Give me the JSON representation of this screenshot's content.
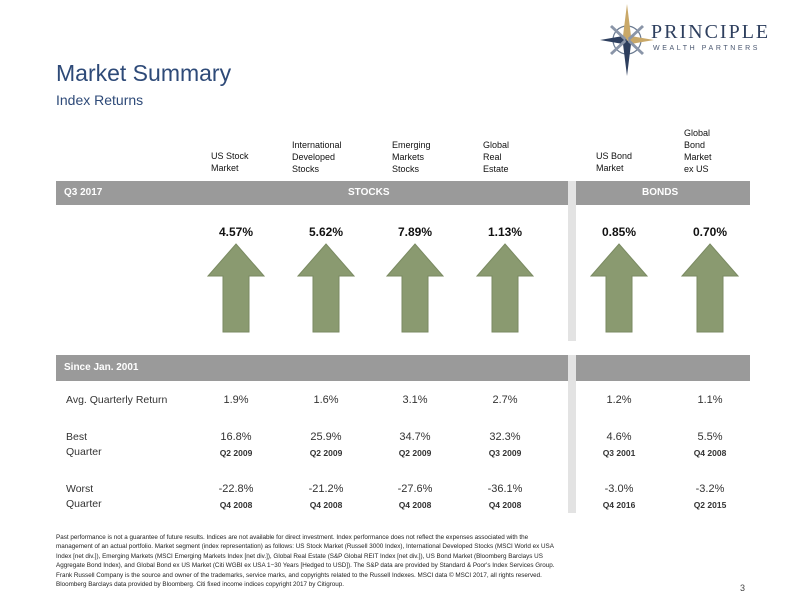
{
  "header": {
    "title": "Market Summary",
    "subtitle": "Index Returns",
    "logo_word": "PRINCIPLE",
    "logo_sub": "WEALTH PARTNERS"
  },
  "columns": [
    {
      "label_lines": [
        "US Stock",
        "Market"
      ]
    },
    {
      "label_lines": [
        "International",
        "Developed",
        "Stocks"
      ]
    },
    {
      "label_lines": [
        "Emerging",
        "Markets",
        "Stocks"
      ]
    },
    {
      "label_lines": [
        "Global",
        "Real",
        "Estate"
      ]
    },
    {
      "label_lines": [
        "US Bond",
        "Market"
      ]
    },
    {
      "label_lines": [
        "Global",
        "Bond",
        "Market",
        "ex US"
      ]
    }
  ],
  "quarter_bar": {
    "period": "Q3 2017",
    "stocks": "STOCKS",
    "bonds": "BONDS"
  },
  "quarter_returns": [
    {
      "value": "4.57%",
      "direction": "up"
    },
    {
      "value": "5.62%",
      "direction": "up"
    },
    {
      "value": "7.89%",
      "direction": "up"
    },
    {
      "value": "1.13%",
      "direction": "up"
    },
    {
      "value": "0.85%",
      "direction": "up"
    },
    {
      "value": "0.70%",
      "direction": "up"
    }
  ],
  "since_bar": {
    "label": "Since Jan. 2001"
  },
  "rows": {
    "avg": {
      "label": "Avg. Quarterly Return",
      "values": [
        "1.9%",
        "1.6%",
        "3.1%",
        "2.7%",
        "1.2%",
        "1.1%"
      ]
    },
    "best": {
      "label_line1": "Best",
      "label_line2": "Quarter",
      "values": [
        "16.8%",
        "25.9%",
        "34.7%",
        "32.3%",
        "4.6%",
        "5.5%"
      ],
      "quarters": [
        "Q2 2009",
        "Q2 2009",
        "Q2 2009",
        "Q3 2009",
        "Q3 2001",
        "Q4 2008"
      ]
    },
    "worst": {
      "label_line1": "Worst",
      "label_line2": "Quarter",
      "values": [
        "-22.8%",
        "-21.2%",
        "-27.6%",
        "-36.1%",
        "-3.0%",
        "-3.2%"
      ],
      "quarters": [
        "Q4 2008",
        "Q4 2008",
        "Q4 2008",
        "Q4 2008",
        "Q4 2016",
        "Q2 2015"
      ]
    }
  },
  "footer": {
    "lines": [
      "Past performance is not a guarantee of future results. Indices are not available for direct investment. Index performance does not reflect the expenses associated with the",
      "management of an actual portfolio. Market segment (index representation) as follows: US Stock Market (Russell 3000 Index), International Developed Stocks (MSCI World ex USA",
      "Index [net div.]), Emerging Markets (MSCI Emerging Markets Index [net div.]), Global Real Estate (S&P Global REIT Index [net div.]), US Bond Market (Bloomberg Barclays US",
      "Aggregate Bond Index), and Global Bond ex US Market (Citi WGBI ex USA 1−30 Years [Hedged to USD]). The S&P data are provided by Standard & Poor's Index Services Group.",
      "Frank Russell Company is the source and owner of the trademarks, service marks, and copyrights related to the Russell Indexes. MSCI data © MSCI 2017, all rights reserved.",
      "Bloomberg Barclays data provided by Bloomberg. Citi fixed income indices copyright 2017 by Citigroup."
    ],
    "page_number": "3"
  },
  "colors": {
    "arrow": "#8a9a70",
    "bar": "#9a9a9a",
    "panel": "#e3e3e3",
    "title": "#2e4a78"
  }
}
